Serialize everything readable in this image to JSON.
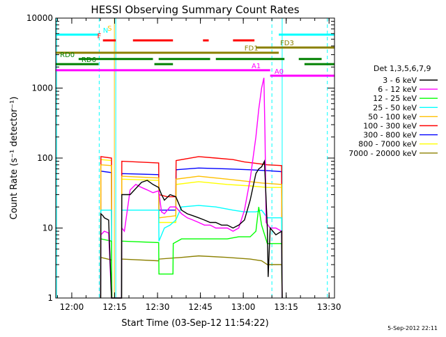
{
  "chart_data": {
    "type": "line",
    "title": "HESSI Observing Summary Count Rates",
    "xlabel": "Start Time (03-Sep-12 11:54:22)",
    "ylabel": "Count Rate (s⁻¹ detector⁻¹)",
    "x_unit": "minutes after 11:54:22 UT",
    "xlim": [
      0,
      97.5
    ],
    "ylim": [
      1,
      10000
    ],
    "yscale": "log",
    "x_ticks": [
      {
        "x": 5.6,
        "label": "12:00"
      },
      {
        "x": 20.6,
        "label": "12:15"
      },
      {
        "x": 35.6,
        "label": "12:30"
      },
      {
        "x": 50.6,
        "label": "12:45"
      },
      {
        "x": 65.6,
        "label": "13:00"
      },
      {
        "x": 80.6,
        "label": "13:15"
      },
      {
        "x": 95.6,
        "label": "13:30"
      }
    ],
    "y_ticks": [
      {
        "y": 1,
        "label": "1"
      },
      {
        "y": 10,
        "label": "10"
      },
      {
        "y": 100,
        "label": "100"
      },
      {
        "y": 1000,
        "label": "1000"
      },
      {
        "y": 10000,
        "label": "10000"
      }
    ],
    "legend_title": "Det 1,3,5,6,7,9",
    "legend_position": "right",
    "series": [
      {
        "name": "3 - 6 keV",
        "color": "#000000",
        "points": [
          [
            15.7,
            1
          ],
          [
            15.8,
            16
          ],
          [
            16.5,
            15
          ],
          [
            17,
            14
          ],
          [
            18.5,
            13
          ],
          [
            19.5,
            1
          ],
          [
            23,
            1
          ],
          [
            23.1,
            30
          ],
          [
            26,
            30
          ],
          [
            30,
            45
          ],
          [
            32,
            48
          ],
          [
            34,
            42
          ],
          [
            36,
            38
          ],
          [
            37,
            30
          ],
          [
            38,
            25
          ],
          [
            40,
            30
          ],
          [
            42,
            28
          ],
          [
            44,
            18
          ],
          [
            46,
            16
          ],
          [
            48,
            15
          ],
          [
            50,
            14
          ],
          [
            52,
            13
          ],
          [
            54,
            12
          ],
          [
            56,
            12
          ],
          [
            58,
            11
          ],
          [
            60,
            11
          ],
          [
            62,
            10
          ],
          [
            64,
            11
          ],
          [
            66,
            13
          ],
          [
            68,
            25
          ],
          [
            70,
            60
          ],
          [
            71,
            70
          ],
          [
            72,
            75
          ],
          [
            73,
            90
          ],
          [
            74,
            10
          ],
          [
            74.3,
            2
          ],
          [
            75,
            10
          ],
          [
            77,
            8
          ],
          [
            79,
            9
          ],
          [
            79.2,
            1
          ]
        ]
      },
      {
        "name": "6 - 12 keV",
        "color": "#ff00ff",
        "points": [
          [
            15.7,
            1
          ],
          [
            15.8,
            8
          ],
          [
            17,
            9
          ],
          [
            18.5,
            8.5
          ],
          [
            19.5,
            1
          ],
          [
            23,
            1
          ],
          [
            23.1,
            10
          ],
          [
            24,
            9
          ],
          [
            26,
            35
          ],
          [
            28,
            42
          ],
          [
            30,
            38
          ],
          [
            32,
            35
          ],
          [
            34,
            32
          ],
          [
            36,
            34
          ],
          [
            37,
            17
          ],
          [
            38,
            16
          ],
          [
            40,
            20
          ],
          [
            42,
            20
          ],
          [
            44,
            16
          ],
          [
            46,
            14
          ],
          [
            48,
            13
          ],
          [
            50,
            12
          ],
          [
            52,
            11
          ],
          [
            54,
            11
          ],
          [
            56,
            10
          ],
          [
            58,
            10
          ],
          [
            60,
            10
          ],
          [
            62,
            9
          ],
          [
            64,
            10
          ],
          [
            66,
            18
          ],
          [
            68,
            50
          ],
          [
            70,
            200
          ],
          [
            71,
            500
          ],
          [
            72,
            1000
          ],
          [
            72.8,
            1400
          ],
          [
            73.2,
            200
          ],
          [
            73.6,
            12
          ],
          [
            75,
            10
          ],
          [
            77,
            10
          ],
          [
            79,
            9
          ],
          [
            79.2,
            1
          ]
        ]
      },
      {
        "name": "12 - 25 keV",
        "color": "#00ff00",
        "points": [
          [
            15.7,
            1
          ],
          [
            15.8,
            7
          ],
          [
            19.5,
            6.5
          ],
          [
            19.6,
            1
          ],
          [
            23,
            1
          ],
          [
            23.1,
            6.5
          ],
          [
            36,
            6.2
          ],
          [
            36.1,
            2.2
          ],
          [
            41,
            2.2
          ],
          [
            41.1,
            6
          ],
          [
            44,
            7
          ],
          [
            60,
            7
          ],
          [
            64,
            7.5
          ],
          [
            68,
            7.5
          ],
          [
            70,
            9
          ],
          [
            71,
            20
          ],
          [
            72,
            11
          ],
          [
            74,
            6
          ],
          [
            79,
            6
          ],
          [
            79.2,
            1
          ]
        ]
      },
      {
        "name": "25 - 50 keV",
        "color": "#00ffff",
        "points": [
          [
            15.7,
            1
          ],
          [
            15.8,
            18
          ],
          [
            19.5,
            18
          ],
          [
            19.6,
            1
          ],
          [
            23,
            1
          ],
          [
            23.1,
            18
          ],
          [
            36,
            18
          ],
          [
            36.1,
            6.5
          ],
          [
            38,
            10
          ],
          [
            40,
            11
          ],
          [
            42,
            13
          ],
          [
            44,
            20
          ],
          [
            50,
            21
          ],
          [
            56,
            20
          ],
          [
            62,
            18
          ],
          [
            66,
            17
          ],
          [
            70,
            17
          ],
          [
            72,
            18
          ],
          [
            74,
            14
          ],
          [
            79,
            14
          ],
          [
            79.2,
            1
          ]
        ]
      },
      {
        "name": "50 - 100 keV",
        "color": "#ffc000",
        "points": [
          [
            15.7,
            1
          ],
          [
            15.8,
            80
          ],
          [
            19.5,
            78
          ],
          [
            19.6,
            1
          ],
          [
            23,
            1
          ],
          [
            23.1,
            55
          ],
          [
            36,
            52
          ],
          [
            36.1,
            14
          ],
          [
            42,
            15
          ],
          [
            42.1,
            50
          ],
          [
            50,
            55
          ],
          [
            60,
            50
          ],
          [
            68,
            46
          ],
          [
            72,
            44
          ],
          [
            79,
            42
          ],
          [
            79.2,
            1
          ]
        ]
      },
      {
        "name": "100 - 300 keV",
        "color": "#ff0000",
        "points": [
          [
            15.7,
            1
          ],
          [
            15.8,
            105
          ],
          [
            19.5,
            100
          ],
          [
            19.6,
            1
          ],
          [
            23,
            1
          ],
          [
            23.1,
            90
          ],
          [
            36,
            85
          ],
          [
            36.1,
            30
          ],
          [
            39,
            28
          ],
          [
            42,
            28
          ],
          [
            42.1,
            92
          ],
          [
            50,
            105
          ],
          [
            56,
            100
          ],
          [
            62,
            95
          ],
          [
            66,
            88
          ],
          [
            70,
            84
          ],
          [
            74,
            80
          ],
          [
            79,
            78
          ],
          [
            79.2,
            1
          ]
        ]
      },
      {
        "name": "300 - 800 keV",
        "color": "#0000ff",
        "points": [
          [
            15.7,
            1
          ],
          [
            15.8,
            65
          ],
          [
            19.5,
            62
          ],
          [
            19.6,
            1
          ],
          [
            23,
            1
          ],
          [
            23.1,
            60
          ],
          [
            36,
            58
          ],
          [
            36.1,
            18
          ],
          [
            42,
            18
          ],
          [
            42.1,
            68
          ],
          [
            50,
            72
          ],
          [
            60,
            70
          ],
          [
            68,
            68
          ],
          [
            74,
            66
          ],
          [
            79,
            64
          ],
          [
            79.2,
            1
          ]
        ]
      },
      {
        "name": "800 - 7000 keV",
        "color": "#ffff00",
        "points": [
          [
            15.7,
            1
          ],
          [
            15.8,
            95
          ],
          [
            19.5,
            92
          ],
          [
            19.6,
            1
          ],
          [
            23,
            1
          ],
          [
            23.1,
            50
          ],
          [
            36,
            48
          ],
          [
            36.1,
            12
          ],
          [
            42,
            12
          ],
          [
            42.1,
            42
          ],
          [
            50,
            46
          ],
          [
            60,
            42
          ],
          [
            68,
            40
          ],
          [
            74,
            38
          ],
          [
            79,
            38
          ],
          [
            79.2,
            1
          ]
        ]
      },
      {
        "name": "7000 - 20000 keV",
        "color": "#8b8000",
        "points": [
          [
            15.7,
            1
          ],
          [
            15.8,
            3.8
          ],
          [
            19.5,
            3.5
          ],
          [
            19.6,
            1
          ],
          [
            23,
            1
          ],
          [
            23.1,
            3.6
          ],
          [
            36,
            3.4
          ],
          [
            36.1,
            3.6
          ],
          [
            44,
            3.8
          ],
          [
            50,
            4
          ],
          [
            60,
            3.8
          ],
          [
            68,
            3.6
          ],
          [
            72,
            3.4
          ],
          [
            74,
            3
          ],
          [
            79,
            3
          ],
          [
            79.2,
            1
          ]
        ]
      }
    ],
    "state_bars": [
      {
        "label": "N",
        "color": "#00ffff",
        "y": 5800,
        "segments": [
          [
            0,
            15
          ]
        ],
        "label_x": 16.5,
        "label_color": "#00ffff"
      },
      {
        "label": "",
        "color": "#00ffff",
        "y": 5800,
        "segments": [
          [
            78,
            97.5
          ]
        ]
      },
      {
        "label": "F",
        "color": "#ff0000",
        "y": 4800,
        "segments": [
          [
            16.5,
            21
          ],
          [
            27,
            41
          ],
          [
            51.5,
            53.5
          ],
          [
            62,
            69.5
          ]
        ],
        "label_x": 14.5,
        "label_color": "#ff0000"
      },
      {
        "label": "FD1",
        "color": "#8b8000",
        "y": 3200,
        "segments": [
          [
            0,
            78
          ]
        ],
        "label_x": 66,
        "label_color": "#8b8000"
      },
      {
        "label": "FD3",
        "color": "#8b8000",
        "y": 3800,
        "segments": [
          [
            70,
            97.5
          ]
        ],
        "label_x": 78.5,
        "label_color": "#8b8000"
      },
      {
        "label": "RD0",
        "color": "#008000",
        "y": 2600,
        "segments": [
          [
            8,
            34
          ],
          [
            36,
            54
          ],
          [
            56,
            80
          ],
          [
            85,
            93
          ]
        ],
        "label_x": 1.5,
        "label_color": "#008000"
      },
      {
        "label": "RD6",
        "color": "#008000",
        "y": 2200,
        "segments": [
          [
            0,
            15
          ],
          [
            34.5,
            41
          ],
          [
            87,
            97.5
          ]
        ],
        "label_x": 9,
        "label_color": "#008000"
      },
      {
        "label": "A1",
        "color": "#ff00ff",
        "y": 1800,
        "segments": [
          [
            0,
            75
          ]
        ],
        "label_x": 68.5,
        "label_color": "#ff00ff"
      },
      {
        "label": "A0",
        "color": "#ff00ff",
        "y": 1500,
        "segments": [
          [
            75,
            97.5
          ]
        ],
        "label_x": 76.5,
        "label_color": "#ff00ff"
      }
    ],
    "vlines": [
      {
        "x": 0.3,
        "color": "#00ffff",
        "dashed": false
      },
      {
        "x": 15.2,
        "color": "#00ffff",
        "dashed": true
      },
      {
        "x": 20.5,
        "color": "#ffc000",
        "dashed": false
      },
      {
        "x": 21.0,
        "color": "#00ffff",
        "dashed": false
      },
      {
        "x": 75.6,
        "color": "#00ffff",
        "dashed": true
      },
      {
        "x": 79.2,
        "color": "#00ffff",
        "dashed": false
      },
      {
        "x": 95.0,
        "color": "#00ffff",
        "dashed": true
      }
    ],
    "vline_labels": [
      {
        "text": "S",
        "x": 20.5,
        "color": "#ffc000"
      }
    ]
  },
  "footer_date": "5-Sep-2012 22:11"
}
